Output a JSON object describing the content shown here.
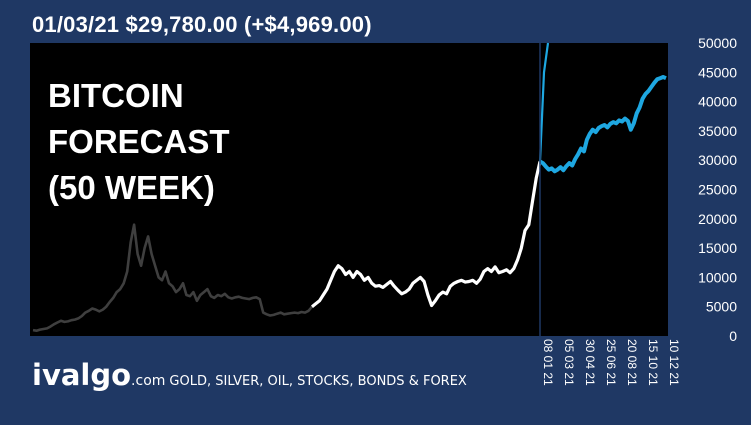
{
  "header": {
    "text": "01/03/21 $29,780.00 (+$4,969.00)"
  },
  "brand": {
    "logo": "ivalgo",
    "tld": ".com",
    "tagline": "GOLD, SILVER, OIL, STOCKS, BONDS & FOREX"
  },
  "colors": {
    "background": "#1f3864",
    "plot": "#000000",
    "history_old": "#3f3f3f",
    "history_recent": "#ffffff",
    "forecast": "#1ea7e1"
  },
  "chart_data": {
    "type": "line",
    "title": "BITCOIN FORECAST (50 WEEK)",
    "title_lines": [
      "BITCOIN",
      "FORECAST",
      "(50 WEEK)"
    ],
    "y_ticks": [
      "50000",
      "45000",
      "40000",
      "35000",
      "30000",
      "25000",
      "20000",
      "15000",
      "10000",
      "5000",
      "0"
    ],
    "x_ticks": [
      "08 01 21",
      "05 03 21",
      "30 04 21",
      "25 06 21",
      "20 08 21",
      "15 10 21",
      "10 12 21"
    ],
    "ylim": [
      0,
      50000
    ],
    "series": [
      {
        "role": "history_old",
        "values": [
          1000,
          900,
          1100,
          1200,
          1300,
          1600,
          2000,
          2300,
          2600,
          2400,
          2500,
          2700,
          2800,
          3000,
          3400,
          4000,
          4300,
          4700,
          4500,
          4200,
          4500,
          5000,
          5800,
          6500,
          7500,
          8000,
          9000,
          11000,
          16000,
          19000,
          14000,
          12000,
          15000,
          17000,
          14000,
          12000,
          10000,
          9500,
          11000,
          9000,
          8500,
          7500,
          8000,
          9000,
          7000,
          6800,
          7500,
          6000,
          7000,
          7500,
          8000,
          6800,
          6500,
          7000,
          6800,
          7200,
          6600,
          6400,
          6600,
          6700,
          6500,
          6400,
          6300,
          6500,
          6600,
          6300,
          4000,
          3700,
          3500,
          3600,
          3800,
          4000,
          3700,
          3800,
          3900,
          4000,
          3900,
          4100,
          4000,
          4300,
          5000
        ]
      },
      {
        "role": "history_recent",
        "values": [
          5000,
          5500,
          6000,
          7000,
          8000,
          9500,
          11000,
          12000,
          11500,
          10500,
          11000,
          10000,
          11000,
          10500,
          9500,
          10000,
          9000,
          8500,
          8600,
          8300,
          8800,
          9300,
          8500,
          7800,
          7200,
          7500,
          8000,
          9000,
          9500,
          10000,
          9300,
          7000,
          5200,
          6000,
          7000,
          7500,
          7200,
          8500,
          9000,
          9300,
          9500,
          9200,
          9300,
          9500,
          9000,
          9700,
          11000,
          11500,
          11000,
          11800,
          10800,
          11000,
          11300,
          10800,
          11500,
          13000,
          15000,
          18000,
          19000,
          23000,
          27000,
          29780
        ]
      },
      {
        "role": "forecast",
        "values": [
          29780,
          29500,
          28900,
          28400,
          28600,
          28100,
          28400,
          28800,
          28300,
          29000,
          29500,
          29100,
          30200,
          31000,
          32000,
          31500,
          33500,
          34500,
          35200,
          34800,
          35500,
          35800,
          36000,
          35600,
          36200,
          36500,
          36300,
          36800,
          36600,
          37100,
          36700,
          35200,
          36300,
          38000,
          39000,
          40500,
          41300,
          41800,
          42500,
          43200,
          43800,
          44000,
          44200,
          44000
        ]
      },
      {
        "role": "forecast_jump",
        "values": [
          29780,
          45000,
          50000
        ]
      }
    ]
  }
}
